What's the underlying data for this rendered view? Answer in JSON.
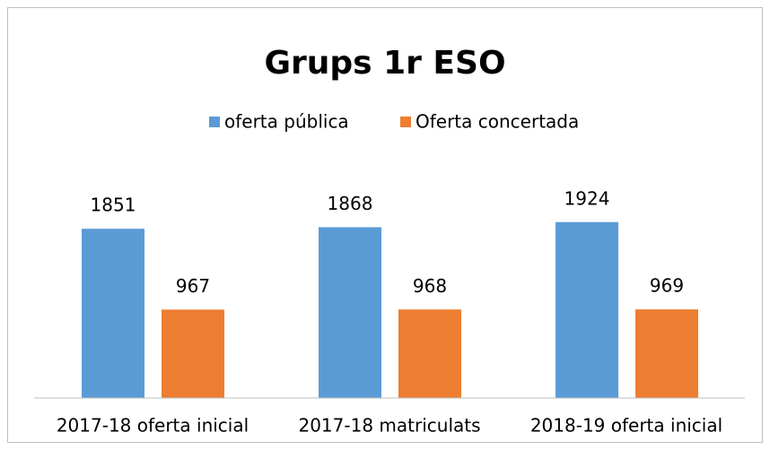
{
  "chart_data": {
    "type": "bar",
    "title": "Grups 1r ESO",
    "categories": [
      "2017-18 oferta inicial",
      "2017-18 matriculats",
      "2018-19 oferta inicial"
    ],
    "series": [
      {
        "name": "oferta pública",
        "color": "#5b9bd5",
        "values": [
          1851,
          1868,
          1924
        ]
      },
      {
        "name": "Oferta concertada",
        "color": "#ed7d31",
        "values": [
          967,
          968,
          969
        ]
      }
    ],
    "ylim": [
      0,
      2500
    ],
    "legend": "top"
  }
}
